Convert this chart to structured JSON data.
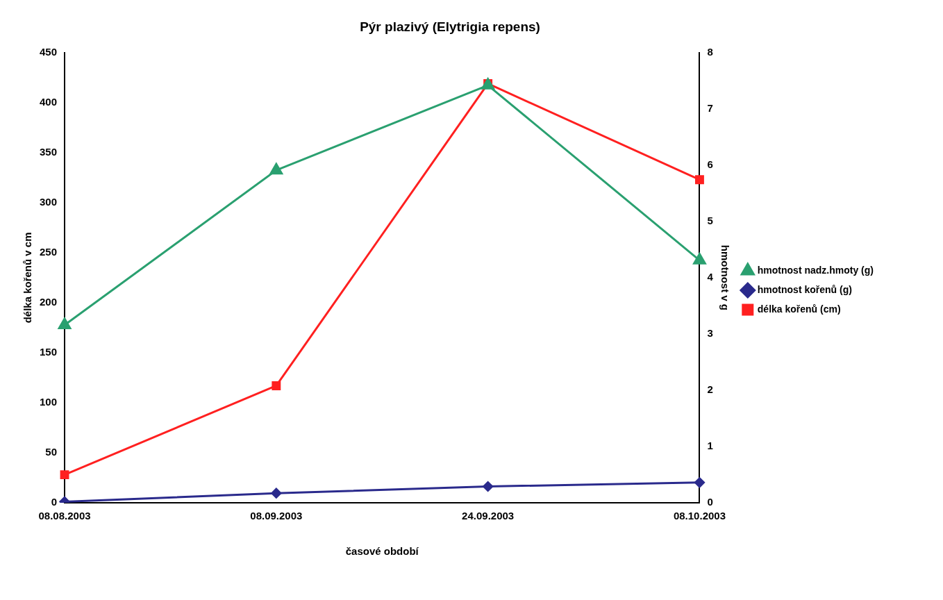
{
  "chart_data": {
    "type": "line",
    "title": "Pýr plazivý (Elytrigia repens)",
    "xlabel": "časové období",
    "ylabel": "délka kořenů v cm",
    "y2label": "hmotnost v g",
    "categories": [
      "08.08.2003",
      "08.09.2003",
      "24.09.2003",
      "08.10.2003"
    ],
    "series": [
      {
        "name": "délka kořenů (cm)",
        "color": "#ff2020",
        "marker": "square",
        "values": [
          28,
          117,
          419,
          323
        ]
      },
      {
        "name": "hmotnost kořenů (g)",
        "color": "#2a2a8c",
        "marker": "diamond",
        "axis": "y2",
        "values": [
          0.02,
          0.17,
          0.29,
          0.36
        ]
      },
      {
        "name": "hmotnost nadz.hmoty (g)",
        "color": "#2aa070",
        "marker": "triangle",
        "axis": "y2",
        "values": [
          3.16,
          5.91,
          7.42,
          4.31
        ]
      }
    ],
    "ylim": [
      0,
      450
    ],
    "yticks": [
      0,
      50,
      100,
      150,
      200,
      250,
      300,
      350,
      400,
      450
    ],
    "y2lim": [
      0,
      8
    ],
    "y2ticks": [
      0,
      1,
      2,
      3,
      4,
      5,
      6,
      7,
      8
    ],
    "grid": false,
    "legend": "right"
  }
}
